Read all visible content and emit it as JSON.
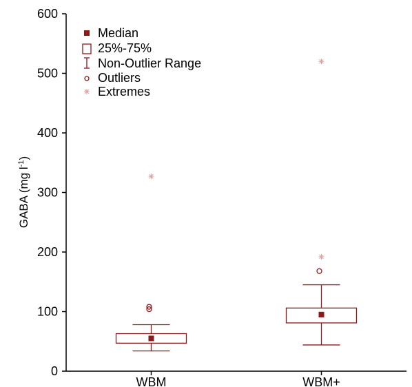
{
  "chart_data": {
    "type": "box",
    "ylabel": "GABA (mg l",
    "ylabel_sup": "-1",
    "ylabel_close": ")",
    "ylim": [
      0,
      600
    ],
    "yticks": [
      0,
      100,
      200,
      300,
      400,
      500,
      600
    ],
    "categories": [
      "WBM",
      "WBM+"
    ],
    "boxes": [
      {
        "category": "WBM",
        "median": 55,
        "q1": 47,
        "q3": 63,
        "whisker_low": 34,
        "whisker_high": 78,
        "outliers": [
          104,
          108
        ],
        "extremes": [
          327
        ]
      },
      {
        "category": "WBM+",
        "median": 95,
        "q1": 81,
        "q3": 106,
        "whisker_low": 44,
        "whisker_high": 145,
        "outliers": [
          168
        ],
        "extremes": [
          192,
          520
        ]
      }
    ],
    "legend": {
      "position": "top-left",
      "items": [
        {
          "label": "Median",
          "symbol": "filled-square"
        },
        {
          "label": "25%-75%",
          "symbol": "box"
        },
        {
          "label": "Non-Outlier Range",
          "symbol": "whisker"
        },
        {
          "label": "Outliers",
          "symbol": "circle"
        },
        {
          "label": "Extremes",
          "symbol": "asterisk"
        }
      ]
    },
    "colors": {
      "box": "#8b1a1a",
      "median": "#8b1a1a",
      "extreme": "#d9a0a0",
      "axis": "#000000"
    }
  }
}
